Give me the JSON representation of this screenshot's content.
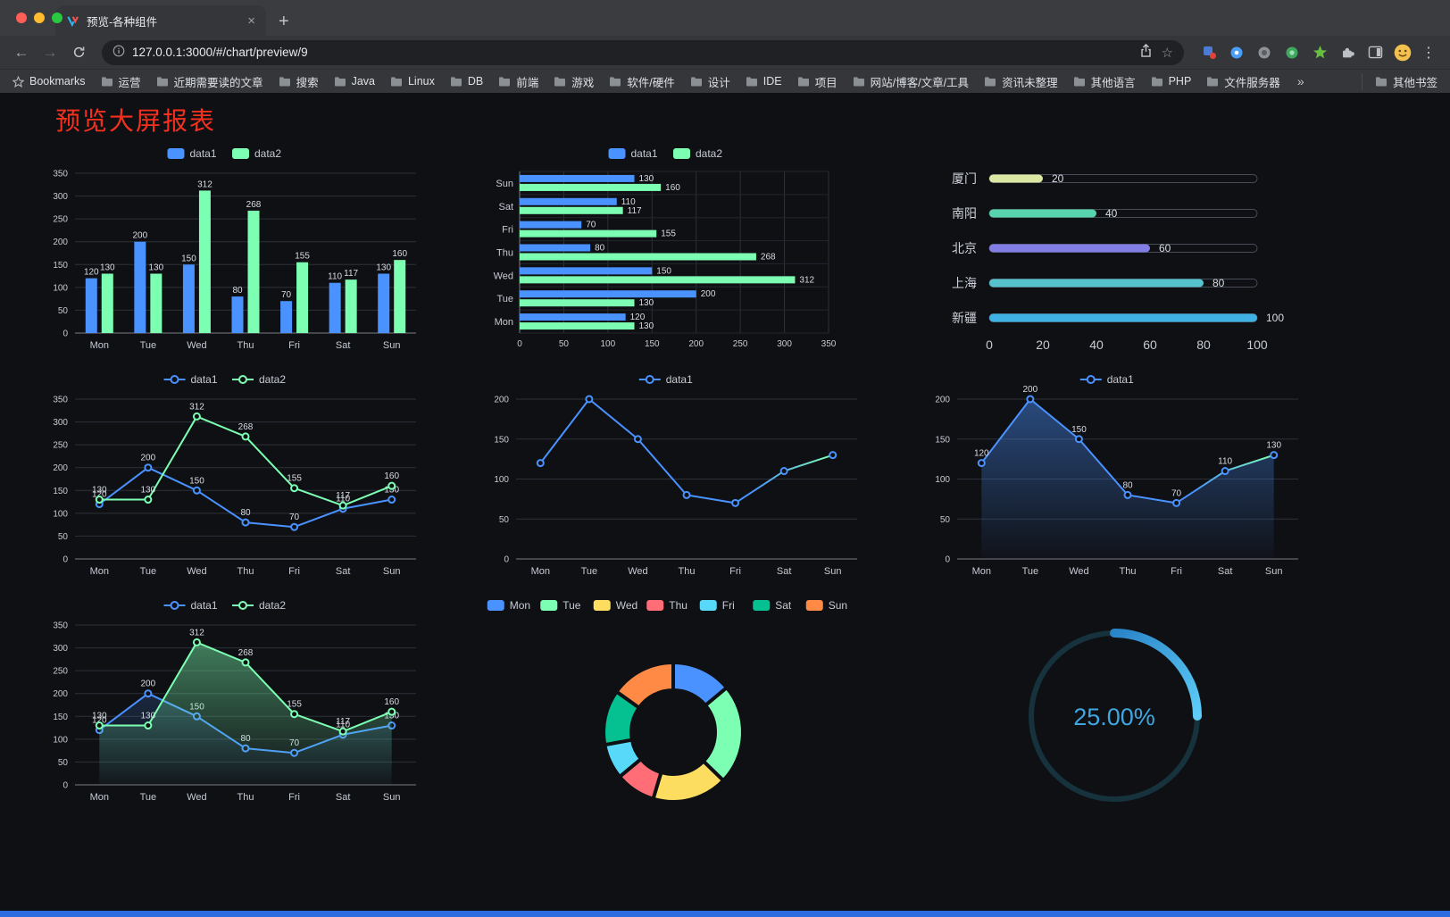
{
  "browser": {
    "tab": {
      "title": "预览-各种组件",
      "close_icon": "×"
    },
    "new_tab_icon": "+",
    "toolbar": {
      "back_icon": "←",
      "forward_icon": "→",
      "url": "127.0.0.1:3000/#/chart/preview/9",
      "bookmark_star_icon": "☆",
      "kebab_icon": "⋮"
    },
    "bookmarks_bar": {
      "items": [
        {
          "icon": "star",
          "label": "Bookmarks"
        },
        {
          "icon": "folder",
          "label": "运营"
        },
        {
          "icon": "folder",
          "label": "近期需要读的文章"
        },
        {
          "icon": "folder",
          "label": "搜索"
        },
        {
          "icon": "folder",
          "label": "Java"
        },
        {
          "icon": "folder",
          "label": "Linux"
        },
        {
          "icon": "folder",
          "label": "DB"
        },
        {
          "icon": "folder",
          "label": "前端"
        },
        {
          "icon": "folder",
          "label": "游戏"
        },
        {
          "icon": "folder",
          "label": "软件/硬件"
        },
        {
          "icon": "folder",
          "label": "设计"
        },
        {
          "icon": "folder",
          "label": "IDE"
        },
        {
          "icon": "folder",
          "label": "项目"
        },
        {
          "icon": "folder",
          "label": "网站/博客/文章/工具"
        },
        {
          "icon": "folder",
          "label": "资讯未整理"
        },
        {
          "icon": "folder",
          "label": "其他语言"
        },
        {
          "icon": "folder",
          "label": "PHP"
        },
        {
          "icon": "folder",
          "label": "文件服务器"
        }
      ],
      "overflow_icon": "»",
      "other_bookmarks_label": "其他书签"
    }
  },
  "page": {
    "title": "预览大屏报表",
    "title_color": "#f5301e",
    "footer_color": "#2c6be0"
  },
  "chart_data": [
    {
      "type": "bar",
      "categories": [
        "Mon",
        "Tue",
        "Wed",
        "Thu",
        "Fri",
        "Sat",
        "Sun"
      ],
      "series": [
        {
          "name": "data1",
          "color": "#4992ff",
          "values": [
            120,
            200,
            150,
            80,
            70,
            110,
            130
          ]
        },
        {
          "name": "data2",
          "color": "#7cffb2",
          "values": [
            130,
            130,
            312,
            268,
            155,
            117,
            160
          ]
        }
      ],
      "ylim": [
        0,
        350
      ],
      "ytick_step": 50,
      "legend_position": "top",
      "grid": true,
      "value_labels": true
    },
    {
      "type": "barh",
      "categories": [
        "Mon",
        "Tue",
        "Wed",
        "Thu",
        "Fri",
        "Sat",
        "Sun"
      ],
      "series": [
        {
          "name": "data1",
          "color": "#4992ff",
          "values": [
            120,
            200,
            150,
            80,
            70,
            110,
            130
          ]
        },
        {
          "name": "data2",
          "color": "#7cffb2",
          "values": [
            130,
            130,
            312,
            268,
            155,
            117,
            160
          ]
        }
      ],
      "xlim": [
        0,
        350
      ],
      "xtick_step": 50,
      "legend_position": "top",
      "grid": true,
      "value_labels": true
    },
    {
      "type": "progress",
      "categories": [
        "厦门",
        "南阳",
        "北京",
        "上海",
        "新疆"
      ],
      "values": [
        20,
        40,
        60,
        80,
        100
      ],
      "colors": [
        "#dbe7a3",
        "#57d4ae",
        "#837de6",
        "#56c2cc",
        "#3fb1e3"
      ],
      "xlim": [
        0,
        100
      ],
      "xticks": [
        0,
        20,
        40,
        60,
        80,
        100
      ]
    },
    {
      "type": "line",
      "categories": [
        "Mon",
        "Tue",
        "Wed",
        "Thu",
        "Fri",
        "Sat",
        "Sun"
      ],
      "series": [
        {
          "name": "data1",
          "color": "#4992ff",
          "values": [
            120,
            200,
            150,
            80,
            70,
            110,
            130
          ]
        },
        {
          "name": "data2",
          "color": "#7cffb2",
          "values": [
            130,
            130,
            312,
            268,
            155,
            117,
            160
          ]
        }
      ],
      "ylim": [
        0,
        350
      ],
      "ytick_step": 50,
      "legend_position": "top",
      "value_labels": true,
      "area": false
    },
    {
      "type": "line",
      "categories": [
        "Mon",
        "Tue",
        "Wed",
        "Thu",
        "Fri",
        "Sat",
        "Sun"
      ],
      "series": [
        {
          "name": "data1",
          "color": "#4992ff",
          "values": [
            120,
            200,
            150,
            80,
            70,
            110,
            130
          ]
        }
      ],
      "ylim": [
        0,
        200
      ],
      "ytick_step": 50,
      "legend_position": "top",
      "value_labels": false,
      "area": false,
      "tail_gradient": true,
      "tail_color": "#7cffb2"
    },
    {
      "type": "line",
      "categories": [
        "Mon",
        "Tue",
        "Wed",
        "Thu",
        "Fri",
        "Sat",
        "Sun"
      ],
      "series": [
        {
          "name": "data1",
          "color": "#4992ff",
          "values": [
            120,
            200,
            150,
            80,
            70,
            110,
            130
          ]
        }
      ],
      "ylim": [
        0,
        200
      ],
      "ytick_step": 50,
      "legend_position": "top",
      "value_labels": true,
      "area": true,
      "tail_gradient": true,
      "tail_color": "#7cffb2"
    },
    {
      "type": "line",
      "categories": [
        "Mon",
        "Tue",
        "Wed",
        "Thu",
        "Fri",
        "Sat",
        "Sun"
      ],
      "series": [
        {
          "name": "data1",
          "color": "#4992ff",
          "values": [
            120,
            200,
            150,
            80,
            70,
            110,
            130
          ]
        },
        {
          "name": "data2",
          "color": "#7cffb2",
          "values": [
            130,
            130,
            312,
            268,
            155,
            117,
            160
          ]
        }
      ],
      "ylim": [
        0,
        350
      ],
      "ytick_step": 50,
      "legend_position": "top",
      "value_labels": true,
      "area": true
    },
    {
      "type": "pie",
      "categories": [
        "Mon",
        "Tue",
        "Wed",
        "Thu",
        "Fri",
        "Sat",
        "Sun"
      ],
      "values": [
        120,
        200,
        150,
        80,
        70,
        110,
        130
      ],
      "colors": [
        "#4992ff",
        "#7cffb2",
        "#fddd60",
        "#ff6e76",
        "#58d9f9",
        "#05c091",
        "#ff8a45"
      ],
      "legend_position": "top"
    },
    {
      "type": "gauge",
      "value": 25,
      "max": 100,
      "label": "25.00%",
      "color": "#3fa7e0",
      "track_color": "#16333d",
      "arc_colors": [
        "#2a84c8",
        "#5ecdf8"
      ]
    }
  ]
}
